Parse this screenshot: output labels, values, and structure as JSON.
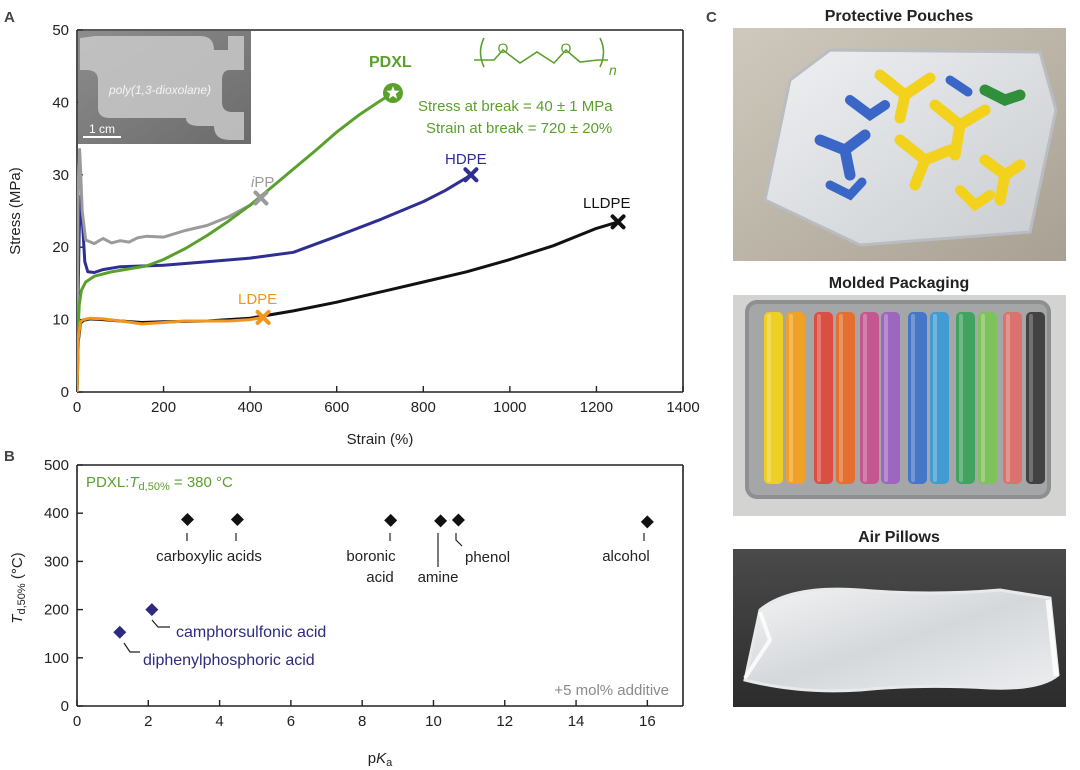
{
  "panels": {
    "a": {
      "letter": "A",
      "inset": {
        "text": "poly(1,3-dioxolane)",
        "scale": "1 cm"
      },
      "pdxl_label": "PDXL",
      "structure_n": "n",
      "atom_o": "O",
      "stress_text": "Stress at break = 40 ± 1 MPa",
      "strain_text": "Strain at break = 720 ± 20%",
      "ipp_italic": "i",
      "ipp_rest": "PP",
      "hdpe_label": "HDPE",
      "lldpe_label": "LLDPE",
      "ldpe_label": "LDPE"
    },
    "b": {
      "letter": "B",
      "pdxl_prefix": "PDXL:",
      "t_symbol": "T",
      "t_sub": "d,50%",
      "t_value": " = 380 °C",
      "additive_note": "+5 mol% additive"
    },
    "c": {
      "letter": "C",
      "photo_titles": [
        "Protective Pouches",
        "Molded Packaging",
        "Air Pillows"
      ]
    }
  },
  "colors": {
    "pdxl": "#5aa02c",
    "hdpe": "#2e2f91",
    "lldpe": "#111111",
    "ldpe": "#f0961e",
    "ipp": "#9b9b9b",
    "acid_blue": "#2e2a7e"
  },
  "chart_data": [
    {
      "type": "line",
      "title": "",
      "xlabel": "Strain (%)",
      "ylabel": "Stress (MPa)",
      "xlim": [
        0,
        1400
      ],
      "ylim": [
        0,
        50
      ],
      "xticks": [
        0,
        200,
        400,
        600,
        800,
        1000,
        1200,
        1400
      ],
      "yticks": [
        0,
        10,
        20,
        30,
        40,
        50
      ],
      "series": [
        {
          "name": "PDXL",
          "color": "#5aa02c",
          "break_marker": "star",
          "x": [
            0,
            2,
            5,
            10,
            20,
            40,
            80,
            120,
            160,
            200,
            250,
            300,
            350,
            400,
            450,
            500,
            550,
            600,
            650,
            700,
            730
          ],
          "y": [
            0,
            8,
            12,
            14,
            15.2,
            16,
            16.6,
            17,
            17.4,
            18.3,
            19.8,
            21.6,
            23.6,
            25.8,
            28.3,
            30.8,
            33.3,
            35.9,
            38.2,
            40.2,
            41.3
          ]
        },
        {
          "name": "HDPE",
          "color": "#2e2f91",
          "break_marker": "x",
          "x": [
            0,
            2,
            5,
            8,
            12,
            18,
            25,
            40,
            60,
            100,
            150,
            200,
            300,
            400,
            500,
            600,
            700,
            800,
            850,
            900,
            910
          ],
          "y": [
            0,
            12,
            22,
            27,
            24,
            18,
            16.6,
            16.5,
            16.9,
            17.3,
            17.4,
            17.5,
            18,
            18.5,
            19.3,
            21.5,
            23.8,
            26.3,
            27.8,
            29.6,
            30
          ]
        },
        {
          "name": "LLDPE",
          "color": "#111111",
          "break_marker": "x",
          "x": [
            0,
            3,
            8,
            15,
            30,
            60,
            100,
            150,
            200,
            300,
            400,
            500,
            600,
            700,
            800,
            900,
            1000,
            1100,
            1200,
            1250
          ],
          "y": [
            0,
            7,
            9.5,
            9.9,
            10.1,
            10,
            9.8,
            9.6,
            9.7,
            9.8,
            10.2,
            11.2,
            12.4,
            13.8,
            15.2,
            16.6,
            18.3,
            20.2,
            22.6,
            23.5
          ]
        },
        {
          "name": "LDPE",
          "color": "#f0961e",
          "break_marker": "x",
          "x": [
            0,
            3,
            8,
            15,
            30,
            60,
            100,
            150,
            200,
            250,
            300,
            350,
            400,
            430
          ],
          "y": [
            0,
            7.5,
            9.7,
            10,
            10.2,
            10.1,
            9.8,
            9.4,
            9.6,
            9.8,
            9.8,
            9.8,
            10,
            10.3
          ]
        },
        {
          "name": "iPP",
          "color": "#9b9b9b",
          "break_marker": "x",
          "x": [
            0,
            2,
            4,
            6,
            8,
            12,
            20,
            40,
            60,
            80,
            100,
            120,
            140,
            160,
            200,
            250,
            300,
            350,
            400,
            425
          ],
          "y": [
            0,
            25,
            31,
            33.5,
            31,
            25,
            21,
            20.5,
            21.2,
            20.6,
            20.9,
            20.7,
            21.3,
            21.5,
            21.4,
            22.3,
            23,
            24.2,
            25.8,
            26.8
          ]
        }
      ]
    },
    {
      "type": "scatter",
      "title": "",
      "xlabel": "pKa",
      "ylabel": "Td,50% (°C)",
      "xlim": [
        0,
        17
      ],
      "ylim": [
        0,
        500
      ],
      "xticks": [
        0,
        2,
        4,
        6,
        8,
        10,
        12,
        14,
        16
      ],
      "yticks": [
        0,
        100,
        200,
        300,
        400,
        500
      ],
      "points": [
        {
          "x": 3.1,
          "y": 387,
          "color": "#111111",
          "label": "carboxylic acids"
        },
        {
          "x": 4.5,
          "y": 387,
          "color": "#111111",
          "label": "carboxylic acids"
        },
        {
          "x": 8.8,
          "y": 385,
          "color": "#111111",
          "label": "boronic acid"
        },
        {
          "x": 10.2,
          "y": 384,
          "color": "#111111",
          "label": "amine"
        },
        {
          "x": 10.7,
          "y": 386,
          "color": "#111111",
          "label": "phenol"
        },
        {
          "x": 16.0,
          "y": 382,
          "color": "#111111",
          "label": "alcohol"
        },
        {
          "x": 2.1,
          "y": 200,
          "color": "#2e2a7e",
          "label": "camphorsulfonic acid"
        },
        {
          "x": 1.2,
          "y": 153,
          "color": "#2e2a7e",
          "label": "diphenylphosphoric acid"
        }
      ],
      "annotations": {
        "carboxylic": "carboxylic acids",
        "boronic_1": "boronic",
        "boronic_2": "acid",
        "amine": "amine",
        "phenol": "phenol",
        "alcohol": "alcohol",
        "camphor": "camphorsulfonic acid",
        "diphenyl": "diphenylphosphoric acid"
      }
    }
  ]
}
